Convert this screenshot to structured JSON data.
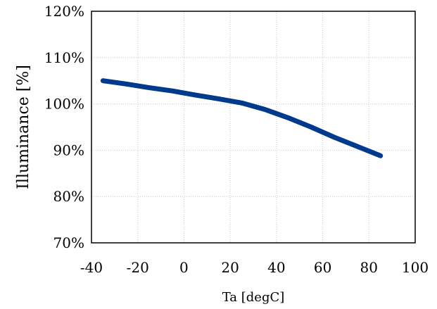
{
  "chart_data": {
    "type": "line",
    "title": "",
    "xlabel": "Ta [degC]",
    "ylabel": "Illuminance [%]",
    "xlim": [
      -40,
      100
    ],
    "ylim": [
      70,
      120
    ],
    "xticks": [
      -40,
      -20,
      0,
      20,
      40,
      60,
      80,
      100
    ],
    "yticks": [
      70,
      80,
      90,
      100,
      110,
      120
    ],
    "xtick_labels": [
      "-40",
      "-20",
      "0",
      "20",
      "40",
      "60",
      "80",
      "100"
    ],
    "ytick_labels": [
      "70%",
      "80%",
      "90%",
      "100%",
      "110%",
      "120%"
    ],
    "grid": true,
    "series": [
      {
        "color": "#003a8c",
        "x": [
          -35,
          -25,
          -15,
          -5,
          5,
          15,
          25,
          35,
          45,
          55,
          65,
          75,
          85
        ],
        "y": [
          105.0,
          104.3,
          103.5,
          102.8,
          101.9,
          101.1,
          100.2,
          98.8,
          97.0,
          95.0,
          92.8,
          90.8,
          88.8
        ]
      }
    ]
  }
}
